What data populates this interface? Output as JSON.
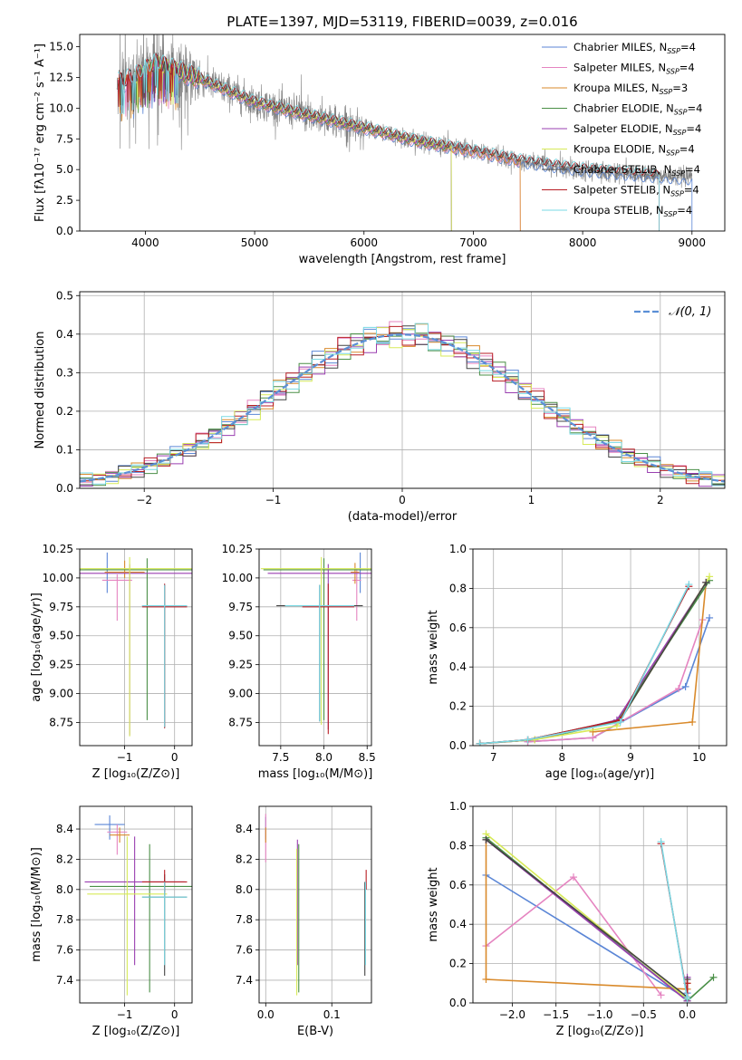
{
  "figure_title": "PLATE=1397, MJD=53119, FIBERID=0039, z=0.016",
  "colors": {
    "Chabrier MILES": "#5b86d6",
    "Salpeter MILES": "#e584c0",
    "Kroupa MILES": "#d98a2b",
    "Chabrier ELODIE": "#4a8f47",
    "Salpeter ELODIE": "#9a3fb0",
    "Kroupa ELODIE": "#d7ea58",
    "Chabrier STELIB": "#444444",
    "Salpeter STELIB": "#b81d24",
    "Kroupa STELIB": "#7ad9e4",
    "gaussian": "#5b8fd6",
    "observed": "#808080"
  },
  "chart_data": [
    {
      "id": "spectrum",
      "type": "line",
      "xlabel": "wavelength [Angstrom, rest frame]",
      "ylabel": "Flux [fλ10⁻¹⁷ erg cm⁻² s⁻¹ A⁻¹]",
      "xlim": [
        3400,
        9300
      ],
      "ylim": [
        0,
        16
      ],
      "xticks": [
        "4000",
        "5000",
        "6000",
        "7000",
        "8000",
        "9000"
      ],
      "yticks": [
        "0.0",
        "2.5",
        "5.0",
        "7.5",
        "10.0",
        "12.5",
        "15.0"
      ],
      "legend_position": "upper right",
      "legend": [
        {
          "label": "Chabrier MILES, N",
          "sub": "SSP",
          "suffix": "=4"
        },
        {
          "label": "Salpeter MILES, N",
          "sub": "SSP",
          "suffix": "=4"
        },
        {
          "label": "Kroupa MILES, N",
          "sub": "SSP",
          "suffix": "=3"
        },
        {
          "label": "Chabrier ELODIE, N",
          "sub": "SSP",
          "suffix": "=4"
        },
        {
          "label": "Salpeter ELODIE, N",
          "sub": "SSP",
          "suffix": "=4"
        },
        {
          "label": "Kroupa ELODIE, N",
          "sub": "SSP",
          "suffix": "=4"
        },
        {
          "label": "Chabrier STELIB, N",
          "sub": "SSP",
          "suffix": "=4"
        },
        {
          "label": "Salpeter STELIB, N",
          "sub": "SSP",
          "suffix": "=4"
        },
        {
          "label": "Kroupa STELIB, N",
          "sub": "SSP",
          "suffix": "=4"
        }
      ],
      "series": [
        {
          "name": "Chabrier MILES",
          "x": [
            3750,
            9000
          ]
        },
        {
          "name": "Salpeter MILES",
          "x": [
            3750,
            7430
          ]
        },
        {
          "name": "Kroupa MILES",
          "x": [
            3750,
            7430
          ]
        },
        {
          "name": "Chabrier ELODIE",
          "x": [
            3900,
            6800
          ]
        },
        {
          "name": "Salpeter ELODIE",
          "x": [
            3900,
            6800
          ]
        },
        {
          "name": "Kroupa ELODIE",
          "x": [
            3900,
            6800
          ]
        },
        {
          "name": "Chabrier STELIB",
          "x": [
            3750,
            8700
          ]
        },
        {
          "name": "Salpeter STELIB",
          "x": [
            3750,
            8700
          ]
        },
        {
          "name": "Kroupa STELIB",
          "x": [
            3750,
            8700
          ]
        }
      ],
      "continuum": [
        [
          3750,
          12.0
        ],
        [
          3900,
          12.5
        ],
        [
          4100,
          13.6
        ],
        [
          4500,
          12.4
        ],
        [
          5000,
          10.5
        ],
        [
          5500,
          9.4
        ],
        [
          6000,
          8.4
        ],
        [
          6500,
          7.3
        ],
        [
          7000,
          6.5
        ],
        [
          7500,
          5.6
        ],
        [
          8000,
          5.0
        ],
        [
          8500,
          4.6
        ],
        [
          9000,
          4.3
        ]
      ]
    },
    {
      "id": "residuals",
      "type": "step",
      "xlabel": "(data-model)/error",
      "ylabel": "Normed distribution",
      "xlim": [
        -2.5,
        2.5
      ],
      "ylim": [
        0,
        0.51
      ],
      "xticks": [
        "−2",
        "−1",
        "0",
        "1",
        "2"
      ],
      "yticks": [
        "0.0",
        "0.1",
        "0.2",
        "0.3",
        "0.4",
        "0.5"
      ],
      "grid": true,
      "legend_position": "upper right",
      "legend": [
        {
          "label": "𝒩(0, 1)"
        }
      ],
      "gaussian": {
        "mu": 0,
        "sigma": 1
      }
    },
    {
      "id": "age-vs-Z",
      "type": "errorbar",
      "xlabel": "Z [log₁₀(Z/Z⊙)]",
      "ylabel": "age  [log₁₀(age/yr)]",
      "xlim": [
        -1.9,
        0.35
      ],
      "ylim": [
        8.55,
        10.25
      ],
      "xticks": [
        "−1",
        "0"
      ],
      "yticks": [
        "8.75",
        "9.00",
        "9.25",
        "9.50",
        "9.75",
        "10.00",
        "10.25"
      ],
      "grid": true,
      "points": [
        {
          "series": "Chabrier MILES",
          "x": -1.35,
          "y": 10.07,
          "xerr": 0.45,
          "yerr": [
            0.2,
            0.15
          ]
        },
        {
          "series": "Salpeter MILES",
          "x": -1.15,
          "y": 9.98,
          "xerr": 0.3,
          "yerr": [
            0.35,
            0.05
          ]
        },
        {
          "series": "Kroupa MILES",
          "x": -1.0,
          "y": 10.05,
          "xerr": 0.4,
          "yerr": [
            0.05,
            0.1
          ]
        },
        {
          "series": "Chabrier ELODIE",
          "x": -0.55,
          "y": 10.07,
          "xerr": 1.7,
          "yerr": [
            1.3,
            0.1
          ]
        },
        {
          "series": "Salpeter ELODIE",
          "x": -0.9,
          "y": 10.04,
          "xerr": 1.5,
          "yerr": [
            1.4,
            0.08
          ]
        },
        {
          "series": "Kroupa ELODIE",
          "x": -0.9,
          "y": 10.08,
          "xerr": 1.7,
          "yerr": [
            1.45,
            0.1
          ]
        },
        {
          "series": "Chabrier STELIB",
          "x": -0.2,
          "y": 9.76,
          "xerr": 0.45,
          "yerr": [
            1.05,
            0.18
          ]
        },
        {
          "series": "Salpeter STELIB",
          "x": -0.2,
          "y": 9.75,
          "xerr": 0.45,
          "yerr": [
            1.05,
            0.2
          ]
        },
        {
          "series": "Kroupa STELIB",
          "x": -0.2,
          "y": 9.76,
          "xerr": 0.45,
          "yerr": [
            1.05,
            0.18
          ]
        }
      ]
    },
    {
      "id": "age-vs-mass",
      "type": "errorbar",
      "xlabel": "mass [log₁₀(M/M⊙)]",
      "ylabel": "",
      "xlim": [
        7.25,
        8.55
      ],
      "ylim": [
        8.55,
        10.25
      ],
      "xticks": [
        "7.5",
        "8.0",
        "8.5"
      ],
      "yticks": [
        "8.75",
        "9.00",
        "9.25",
        "9.50",
        "9.75",
        "10.00",
        "10.25"
      ],
      "grid": true,
      "points": [
        {
          "series": "Chabrier MILES",
          "x": 8.42,
          "y": 10.07,
          "xerr": 0.06,
          "yerr": [
            0.2,
            0.15
          ]
        },
        {
          "series": "Salpeter MILES",
          "x": 8.38,
          "y": 9.98,
          "xerr": 0.05,
          "yerr": [
            0.35,
            0.1
          ]
        },
        {
          "series": "Kroupa MILES",
          "x": 8.36,
          "y": 10.05,
          "xerr": 0.05,
          "yerr": [
            0.1,
            0.08
          ]
        },
        {
          "series": "Chabrier ELODIE",
          "x": 8.0,
          "y": 10.07,
          "xerr": 0.7,
          "yerr": [
            1.3,
            0.1
          ]
        },
        {
          "series": "Salpeter ELODIE",
          "x": 8.05,
          "y": 10.04,
          "xerr": 0.7,
          "yerr": [
            1.35,
            0.08
          ]
        },
        {
          "series": "Kroupa ELODIE",
          "x": 7.97,
          "y": 10.08,
          "xerr": 0.7,
          "yerr": [
            1.35,
            0.1
          ]
        },
        {
          "series": "Chabrier STELIB",
          "x": 7.95,
          "y": 9.76,
          "xerr": 0.5,
          "yerr": [
            1.0,
            0.18
          ]
        },
        {
          "series": "Salpeter STELIB",
          "x": 8.05,
          "y": 9.75,
          "xerr": 0.3,
          "yerr": [
            1.1,
            0.2
          ]
        },
        {
          "series": "Kroupa STELIB",
          "x": 7.95,
          "y": 9.76,
          "xerr": 0.4,
          "yerr": [
            1.0,
            0.18
          ]
        }
      ]
    },
    {
      "id": "massweight-vs-age",
      "type": "line",
      "xlabel": "age  [log₁₀(age/yr)]",
      "ylabel": "mass weight",
      "xlim": [
        6.7,
        10.4
      ],
      "ylim": [
        0,
        1.0
      ],
      "xticks": [
        "7",
        "8",
        "9",
        "10"
      ],
      "yticks": [
        "0.0",
        "0.2",
        "0.4",
        "0.6",
        "0.8",
        "1.0"
      ],
      "grid": true,
      "series": [
        {
          "name": "Chabrier MILES",
          "x": [
            7.5,
            8.45,
            9.8,
            10.15
          ],
          "y": [
            0.02,
            0.04,
            0.3,
            0.65
          ]
        },
        {
          "name": "Salpeter MILES",
          "x": [
            7.5,
            8.45,
            9.7,
            10.05
          ],
          "y": [
            0.02,
            0.04,
            0.29,
            0.64
          ]
        },
        {
          "name": "Kroupa MILES",
          "x": [
            8.45,
            9.9,
            10.1
          ],
          "y": [
            0.07,
            0.12,
            0.83
          ]
        },
        {
          "name": "Chabrier ELODIE",
          "x": [
            6.8,
            7.6,
            8.8,
            10.15
          ],
          "y": [
            0.01,
            0.03,
            0.12,
            0.84
          ]
        },
        {
          "name": "Salpeter ELODIE",
          "x": [
            6.8,
            7.6,
            8.8,
            10.1
          ],
          "y": [
            0.01,
            0.03,
            0.13,
            0.83
          ]
        },
        {
          "name": "Kroupa ELODIE",
          "x": [
            6.8,
            7.6,
            8.8,
            10.15
          ],
          "y": [
            0.01,
            0.03,
            0.1,
            0.86
          ]
        },
        {
          "name": "Chabrier STELIB",
          "x": [
            6.8,
            7.5,
            8.85,
            10.1
          ],
          "y": [
            0.01,
            0.03,
            0.13,
            0.83
          ]
        },
        {
          "name": "Salpeter STELIB",
          "x": [
            6.8,
            7.5,
            8.85,
            9.85
          ],
          "y": [
            0.01,
            0.03,
            0.13,
            0.81
          ]
        },
        {
          "name": "Kroupa STELIB",
          "x": [
            6.8,
            7.5,
            8.85,
            9.85
          ],
          "y": [
            0.01,
            0.03,
            0.12,
            0.82
          ]
        }
      ]
    },
    {
      "id": "mass-vs-Z",
      "type": "errorbar",
      "xlabel": "Z [log₁₀(Z/Z⊙)]",
      "ylabel": "mass [log₁₀(M/M⊙)]",
      "xlim": [
        -1.9,
        0.35
      ],
      "ylim": [
        7.25,
        8.55
      ],
      "xticks": [
        "−1",
        "0"
      ],
      "yticks": [
        "7.4",
        "7.6",
        "7.8",
        "8.0",
        "8.2",
        "8.4"
      ],
      "grid": true,
      "points": [
        {
          "series": "Chabrier MILES",
          "x": -1.3,
          "y": 8.43,
          "xerr": 0.3,
          "yerr": [
            0.1,
            0.06
          ]
        },
        {
          "series": "Salpeter MILES",
          "x": -1.15,
          "y": 8.38,
          "xerr": 0.2,
          "yerr": [
            0.15,
            0.05
          ]
        },
        {
          "series": "Kroupa MILES",
          "x": -1.1,
          "y": 8.36,
          "xerr": 0.2,
          "yerr": [
            0.05,
            0.05
          ]
        },
        {
          "series": "Chabrier ELODIE",
          "x": -0.5,
          "y": 8.02,
          "xerr": 1.2,
          "yerr": [
            0.7,
            0.28
          ]
        },
        {
          "series": "Salpeter ELODIE",
          "x": -0.8,
          "y": 8.05,
          "xerr": 1.0,
          "yerr": [
            0.55,
            0.3
          ]
        },
        {
          "series": "Kroupa ELODIE",
          "x": -0.95,
          "y": 7.97,
          "xerr": 0.8,
          "yerr": [
            0.67,
            0.38
          ]
        },
        {
          "series": "Chabrier STELIB",
          "x": -0.2,
          "y": 7.95,
          "xerr": 0.45,
          "yerr": [
            0.52,
            0.15
          ]
        },
        {
          "series": "Salpeter STELIB",
          "x": -0.2,
          "y": 8.05,
          "xerr": 0.45,
          "yerr": [
            0.07,
            0.08
          ]
        },
        {
          "series": "Kroupa STELIB",
          "x": -0.2,
          "y": 7.95,
          "xerr": 0.45,
          "yerr": [
            0.45,
            0.1
          ]
        }
      ]
    },
    {
      "id": "mass-vs-ebv",
      "type": "errorbar",
      "xlabel": "E(B-V)",
      "ylabel": "",
      "xlim": [
        -0.01,
        0.16
      ],
      "ylim": [
        7.25,
        8.55
      ],
      "xticks": [
        "0.0",
        "0.1"
      ],
      "yticks": [
        "7.4",
        "7.6",
        "7.8",
        "8.0",
        "8.2",
        "8.4"
      ],
      "grid": true,
      "points": [
        {
          "series": "Chabrier MILES",
          "x": 0.0,
          "y": 8.43,
          "xerr": 0,
          "yerr": [
            0.1,
            0.05
          ]
        },
        {
          "series": "Salpeter MILES",
          "x": 0.0,
          "y": 8.38,
          "xerr": 0,
          "yerr": [
            0.2,
            0.12
          ]
        },
        {
          "series": "Kroupa MILES",
          "x": 0.0,
          "y": 8.36,
          "xerr": 0,
          "yerr": [
            0.05,
            0.05
          ]
        },
        {
          "series": "Chabrier ELODIE",
          "x": 0.05,
          "y": 8.02,
          "xerr": 0,
          "yerr": [
            0.7,
            0.28
          ]
        },
        {
          "series": "Salpeter ELODIE",
          "x": 0.048,
          "y": 8.05,
          "xerr": 0,
          "yerr": [
            0.55,
            0.28
          ]
        },
        {
          "series": "Kroupa ELODIE",
          "x": 0.047,
          "y": 7.97,
          "xerr": 0,
          "yerr": [
            0.67,
            0.3
          ]
        },
        {
          "series": "Chabrier STELIB",
          "x": 0.15,
          "y": 7.95,
          "xerr": 0,
          "yerr": [
            0.52,
            0.1
          ]
        },
        {
          "series": "Salpeter STELIB",
          "x": 0.152,
          "y": 8.05,
          "xerr": 0,
          "yerr": [
            0.05,
            0.08
          ]
        },
        {
          "series": "Kroupa STELIB",
          "x": 0.151,
          "y": 7.95,
          "xerr": 0,
          "yerr": [
            0.45,
            0.1
          ]
        }
      ]
    },
    {
      "id": "massweight-vs-Z",
      "type": "line",
      "xlabel": "Z [log₁₀(Z/Z⊙)]",
      "ylabel": "mass weight",
      "xlim": [
        -2.45,
        0.45
      ],
      "ylim": [
        0,
        1.0
      ],
      "xticks": [
        "−2.0",
        "−1.5",
        "−1.0",
        "−0.5",
        "0.0"
      ],
      "yticks": [
        "0.0",
        "0.2",
        "0.4",
        "0.6",
        "0.8",
        "1.0"
      ],
      "grid": true,
      "series": [
        {
          "name": "Chabrier MILES",
          "x": [
            -2.3,
            0.0,
            0.0
          ],
          "y": [
            0.65,
            0.02,
            0.05
          ]
        },
        {
          "name": "Salpeter MILES",
          "x": [
            -2.3,
            -1.3,
            -0.3
          ],
          "y": [
            0.29,
            0.64,
            0.04
          ]
        },
        {
          "name": "Kroupa MILES",
          "x": [
            -2.3,
            -2.3,
            0.0
          ],
          "y": [
            0.83,
            0.12,
            0.07
          ]
        },
        {
          "name": "Chabrier ELODIE",
          "x": [
            -2.3,
            0.0,
            0.3
          ],
          "y": [
            0.84,
            0.01,
            0.13
          ]
        },
        {
          "name": "Salpeter ELODIE",
          "x": [
            -2.3,
            0.0,
            0.0
          ],
          "y": [
            0.83,
            0.01,
            0.13
          ]
        },
        {
          "name": "Kroupa ELODIE",
          "x": [
            -2.3,
            0.0,
            0.0
          ],
          "y": [
            0.86,
            0.02,
            0.1
          ]
        },
        {
          "name": "Chabrier STELIB",
          "x": [
            -2.3,
            0.0,
            0.0
          ],
          "y": [
            0.83,
            0.03,
            0.12
          ]
        },
        {
          "name": "Salpeter STELIB",
          "x": [
            -0.3,
            0.0,
            0.0
          ],
          "y": [
            0.81,
            0.03,
            0.1
          ]
        },
        {
          "name": "Kroupa STELIB",
          "x": [
            -0.3,
            0.0,
            0.0
          ],
          "y": [
            0.82,
            0.02,
            0.03
          ]
        }
      ]
    }
  ]
}
